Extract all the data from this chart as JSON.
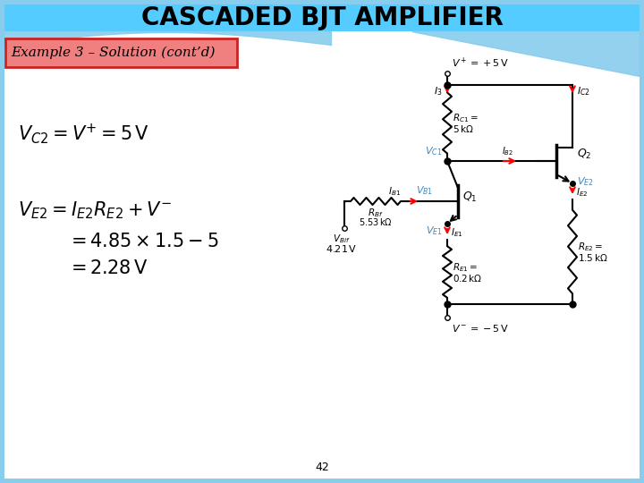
{
  "title": "CASCADED BJT AMPLIFIER",
  "title_bg": "#55CCFF",
  "title_fontsize": 20,
  "subtitle": "Example 3 – Solution (cont’d)",
  "subtitle_box_bg": "#F08080",
  "subtitle_box_edge": "#CC2222",
  "bg_color": "#FFFFFF",
  "slide_bg": "#88CCEE",
  "page_number": "42",
  "blue_label": "#4488BB"
}
